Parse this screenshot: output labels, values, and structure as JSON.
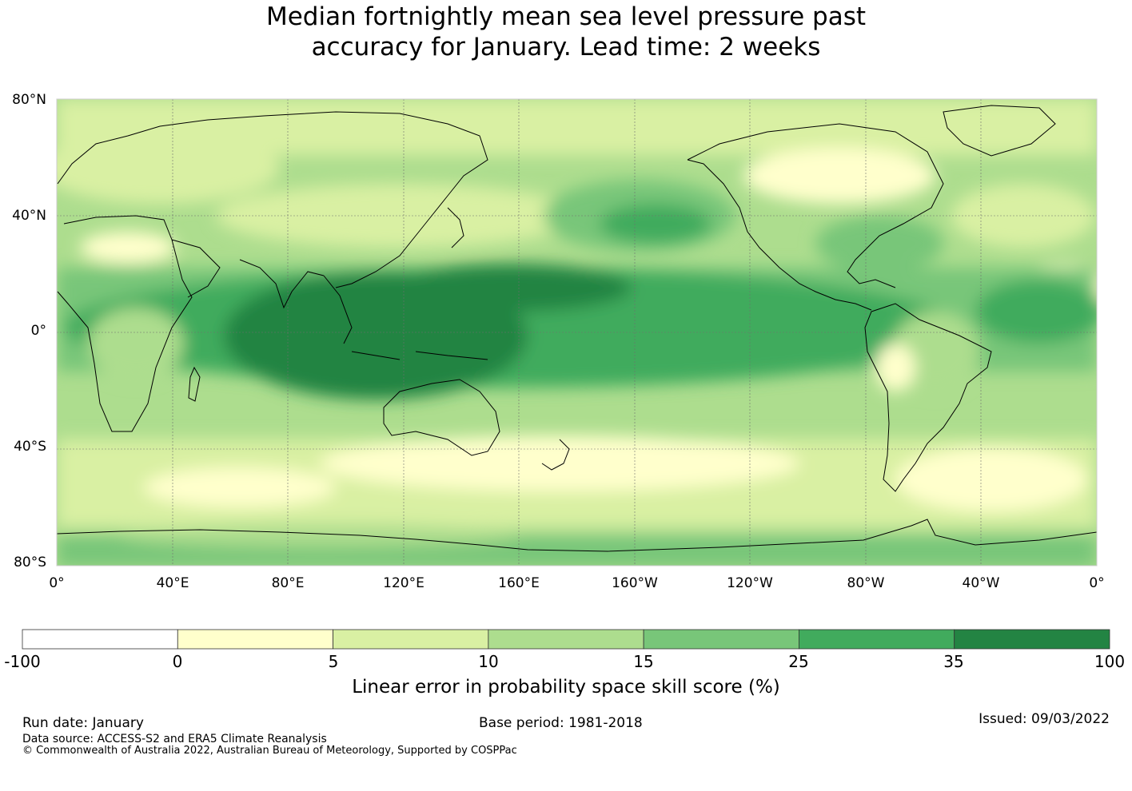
{
  "title": {
    "line1": "Median fortnightly mean sea level pressure past",
    "line2": "accuracy for January. Lead time: 2 weeks"
  },
  "map": {
    "projection": "equirectangular",
    "lon_range": [
      0,
      360
    ],
    "lat_range": [
      -80,
      80
    ],
    "gridlines": true,
    "coastlines": true,
    "lat_ticks": [
      "80°N",
      "40°N",
      "0°",
      "40°S",
      "80°S"
    ],
    "lon_ticks": [
      "0°",
      "40°E",
      "80°E",
      "120°E",
      "160°E",
      "160°W",
      "120°W",
      "80°W",
      "40°W",
      "0°"
    ]
  },
  "colorbar": {
    "ticks": [
      "-100",
      "0",
      "5",
      "10",
      "15",
      "25",
      "35",
      "100"
    ],
    "colors": [
      "#ffffff",
      "#ffffcc",
      "#d9f0a3",
      "#addd8e",
      "#78c679",
      "#41ab5d",
      "#238443"
    ],
    "label": "Linear error in probability space skill score (%)"
  },
  "footer": {
    "run_date": "Run date: January",
    "base_period": "Base period: 1981-2018",
    "issued": "Issued: 09/03/2022",
    "data_source": "Data source: ACCESS-S2 and ERA5 Climate Reanalysis",
    "copyright": "© Commonwealth of Australia 2022, Australian Bureau of Meteorology, Supported by COSPPac"
  }
}
